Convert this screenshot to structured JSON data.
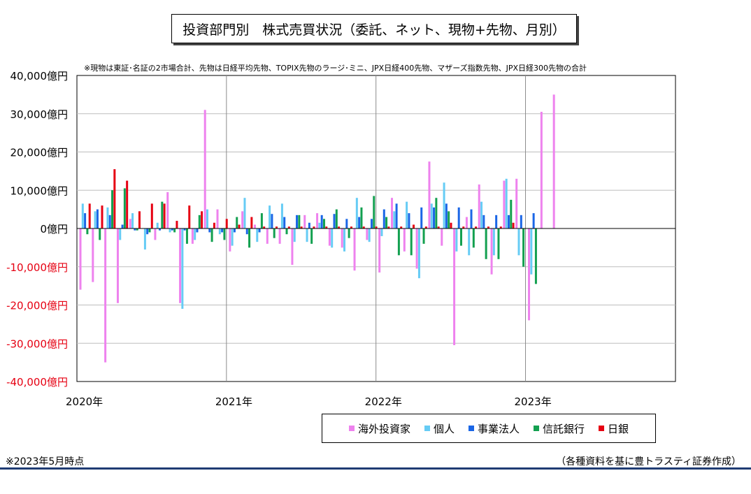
{
  "chart_data": {
    "type": "bar",
    "title": "投資部門別　株式売買状況（委託、ネット、現物+先物、月別）",
    "note": "※現物は東証･名証の2市場合計、先物は日経平均先物、TOPIX先物のラージ･ミニ、JPX日経400先物、マザーズ指数先物、JPX日経300先物の合計",
    "unit": "億円",
    "ylim": [
      -40000,
      40000
    ],
    "yticks": [
      40000,
      30000,
      20000,
      10000,
      0,
      -10000,
      -20000,
      -30000,
      -40000
    ],
    "ytick_labels": [
      "40,000億円",
      "30,000億円",
      "20,000億円",
      "10,000億円",
      "0億円",
      "-10,000億円",
      "-20,000億円",
      "-30,000億円",
      "-40,000億円"
    ],
    "xtick_labels": [
      "2020年",
      "2021年",
      "2022年",
      "2023年"
    ],
    "categories": [
      "2020-01",
      "2020-02",
      "2020-03",
      "2020-04",
      "2020-05",
      "2020-06",
      "2020-07",
      "2020-08",
      "2020-09",
      "2020-10",
      "2020-11",
      "2020-12",
      "2021-01",
      "2021-02",
      "2021-03",
      "2021-04",
      "2021-05",
      "2021-06",
      "2021-07",
      "2021-08",
      "2021-09",
      "2021-10",
      "2021-11",
      "2021-12",
      "2022-01",
      "2022-02",
      "2022-03",
      "2022-04",
      "2022-05",
      "2022-06",
      "2022-07",
      "2022-08",
      "2022-09",
      "2022-10",
      "2022-11",
      "2022-12",
      "2023-01",
      "2023-02",
      "2023-03",
      "2023-04",
      "2023-05"
    ],
    "grid": true,
    "legend_position": "bottom-right",
    "series": [
      {
        "name": "海外投資家",
        "color": "#ee82ee",
        "values": [
          -16000,
          -14000,
          -35000,
          -19500,
          2500,
          0,
          -3000,
          9500,
          -19500,
          -4000,
          31000,
          5000,
          -6000,
          4500,
          1000,
          -4000,
          -4000,
          -9500,
          3500,
          4000,
          -4500,
          -5000,
          -11000,
          -3000,
          -11500,
          8000,
          -6000,
          -10500,
          17500,
          -4500,
          -30500,
          3000,
          11500,
          -12000,
          12500,
          13000,
          -24000,
          30500,
          35000,
          0,
          0
        ]
      },
      {
        "name": "個人",
        "color": "#66ccf5",
        "values": [
          6500,
          4500,
          5500,
          -3000,
          4000,
          -5500,
          1500,
          -1000,
          -21000,
          -3000,
          5000,
          -1500,
          -4500,
          8000,
          -3500,
          6000,
          6500,
          -3500,
          -3500,
          1500,
          -5000,
          -6000,
          8000,
          -3500,
          -2000,
          4500,
          7000,
          -13000,
          6500,
          12000,
          -6000,
          -7000,
          7000,
          -7000,
          13000,
          -7000,
          -12000,
          0,
          0,
          0,
          0
        ]
      },
      {
        "name": "事業法人",
        "color": "#1a66e6",
        "values": [
          4000,
          5000,
          3500,
          1000,
          -500,
          -1500,
          -500,
          -500,
          -500,
          -1000,
          -1000,
          -1000,
          -1000,
          -1500,
          -1000,
          3800,
          3000,
          3500,
          1500,
          3500,
          3800,
          2500,
          3000,
          2500,
          5000,
          6500,
          4000,
          5500,
          5500,
          6500,
          5500,
          5000,
          3500,
          3500,
          3500,
          3500,
          4000,
          0,
          0,
          0,
          0
        ]
      },
      {
        "name": "信託銀行",
        "color": "#13a050",
        "values": [
          -1500,
          -3000,
          10000,
          10500,
          -500,
          -1000,
          7000,
          -1000,
          -4000,
          3500,
          -3500,
          -3000,
          3000,
          -5000,
          4000,
          -2500,
          -1500,
          3500,
          -4000,
          2500,
          5000,
          -2500,
          5500,
          8500,
          3000,
          -7000,
          -7000,
          -4000,
          8000,
          4500,
          -4500,
          -5000,
          -8000,
          -8000,
          7500,
          -10000,
          -14500,
          0,
          0,
          0,
          0
        ]
      },
      {
        "name": "日銀",
        "color": "#e60012",
        "values": [
          6500,
          6000,
          15500,
          12500,
          4500,
          6500,
          6500,
          2000,
          6000,
          4500,
          1500,
          2500,
          1000,
          3000,
          500,
          500,
          500,
          500,
          500,
          500,
          500,
          500,
          500,
          500,
          500,
          500,
          1000,
          500,
          500,
          1500,
          500,
          500,
          500,
          500,
          1500,
          0,
          0,
          0,
          0,
          0,
          0
        ]
      }
    ]
  },
  "footnote": "※2023年5月時点",
  "source": "（各種資料を基に豊トラスティ証券作成）"
}
